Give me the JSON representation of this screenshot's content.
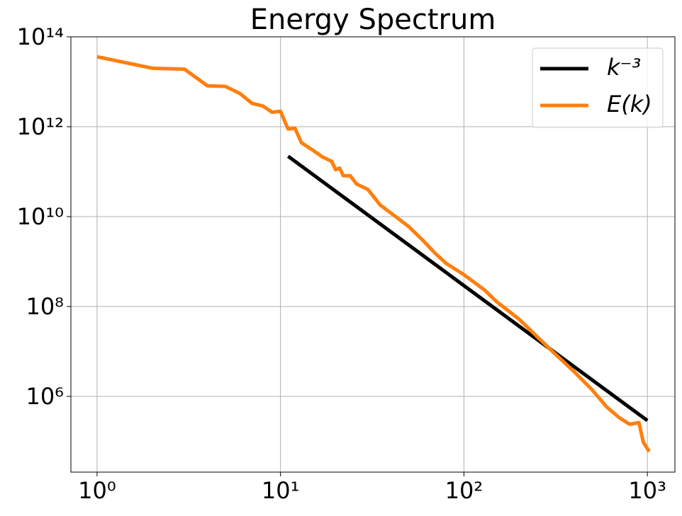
{
  "chart_data": {
    "type": "line",
    "title": "Energy Spectrum",
    "xscale": "log",
    "yscale": "log",
    "grid": true,
    "legend": "upper right",
    "xlim": [
      0.72,
      1413
    ],
    "ylim": [
      20650,
      100000000000000
    ],
    "xticks": [
      {
        "value": 1,
        "label": "10⁰"
      },
      {
        "value": 10,
        "label": "10¹"
      },
      {
        "value": 100,
        "label": "10²"
      },
      {
        "value": 1000,
        "label": "10³"
      }
    ],
    "yticks": [
      {
        "value": 1000000,
        "label": "10⁶"
      },
      {
        "value": 100000000,
        "label": "10⁸"
      },
      {
        "value": 10000000000,
        "label": "10¹⁰"
      },
      {
        "value": 1000000000000,
        "label": "10¹²"
      },
      {
        "value": 100000000000000,
        "label": "10¹⁴"
      }
    ],
    "series": [
      {
        "name": "k⁻³",
        "color": "#000000",
        "x": [
          11,
          1000
        ],
        "values": [
          220000000000,
          290000
        ]
      },
      {
        "name": "E(k)",
        "color": "#ff7f0e",
        "x": [
          1,
          2,
          3,
          4,
          5,
          6,
          7,
          8,
          9,
          10,
          11,
          12,
          13,
          15,
          17,
          19,
          20,
          21,
          22,
          24,
          26,
          30,
          35,
          40,
          50,
          60,
          70,
          80,
          100,
          130,
          150,
          200,
          300,
          400,
          500,
          600,
          700,
          800,
          900,
          950,
          1024
        ],
        "values": [
          36000000000000,
          20000000000000,
          19000000000000,
          8100000000000,
          7900000000000,
          5500000000000,
          3300000000000,
          2900000000000,
          2100000000000,
          2200000000000,
          890000000000,
          920000000000,
          440000000000,
          300000000000,
          210000000000,
          170000000000,
          110000000000,
          120000000000,
          81000000000,
          81000000000,
          53000000000,
          40000000000,
          18000000000,
          12000000000,
          6000000000,
          2900000000,
          1500000000,
          910000000,
          510000000,
          230000000,
          130000000,
          52000000,
          10500000,
          3500000,
          1400000,
          580000,
          340000,
          240000,
          260000,
          96000,
          59000
        ]
      }
    ]
  }
}
